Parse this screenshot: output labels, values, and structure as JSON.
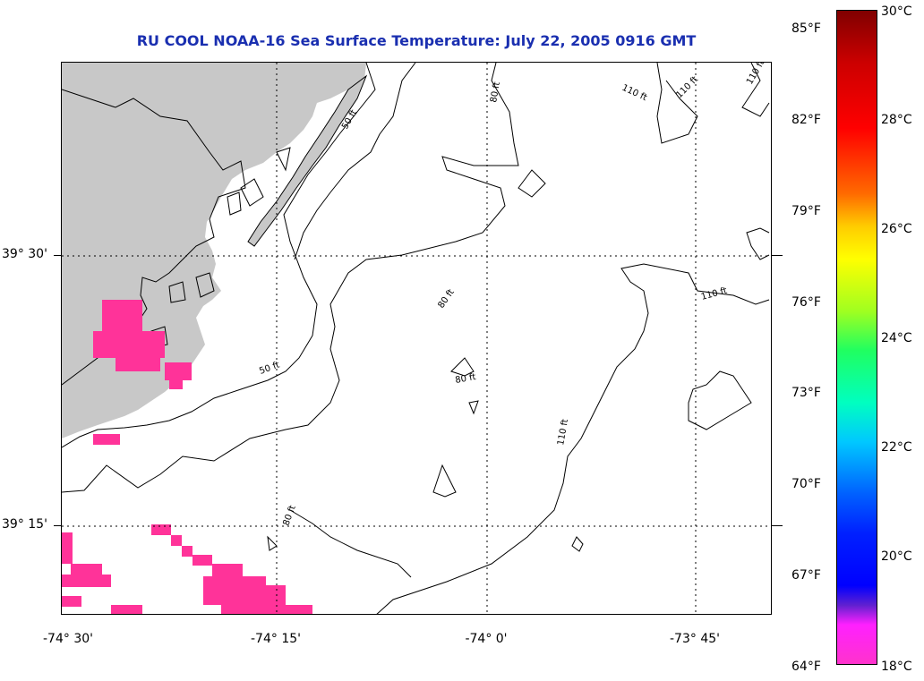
{
  "title": "RU COOL  NOAA-16  Sea Surface Temperature:  July 22, 2005 0916 GMT",
  "lat_labels": [
    "39° 30'",
    "39° 15'"
  ],
  "lon_labels": [
    "-74° 30'",
    "-74° 15'",
    "-74° 0'",
    "-73° 45'"
  ],
  "isobath_labels": [
    "50 ft",
    "50 ft",
    "80 ft",
    "80 ft",
    "80 ft",
    "80 ft",
    "110 ft",
    "110 ft",
    "110 ft",
    "110 ft",
    "110 ft"
  ],
  "colorbar": {
    "fahrenheit": [
      "85°F",
      "82°F",
      "79°F",
      "76°F",
      "73°F",
      "70°F",
      "67°F",
      "64°F"
    ],
    "celsius": [
      "30°C",
      "28°C",
      "26°C",
      "24°C",
      "22°C",
      "20°C",
      "18°C"
    ]
  },
  "colors": {
    "land": "#c8c8c8",
    "sst_pixel": "#ff3399",
    "title": "#1a2fb0"
  }
}
